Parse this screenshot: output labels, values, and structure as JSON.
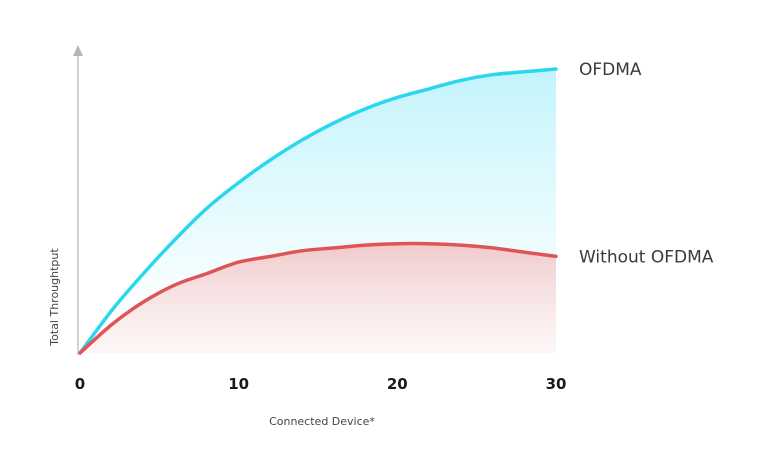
{
  "chart_data": {
    "type": "line",
    "title": "",
    "xlabel": "Connected Device*",
    "ylabel": "Total Throughtput",
    "x_ticks": [
      "0",
      "10",
      "20",
      "30"
    ],
    "xlim": [
      0,
      30
    ],
    "ylim": [
      0,
      100
    ],
    "grid": false,
    "legend": "inline-right",
    "series": [
      {
        "name": "OFDMA",
        "color": "#2ad7ef",
        "x": [
          0,
          2,
          4,
          6,
          8,
          10,
          12,
          14,
          16,
          18,
          20,
          22,
          24,
          26,
          28,
          30
        ],
        "y": [
          0,
          15,
          28,
          40,
          51,
          60,
          68,
          75,
          81,
          86,
          90,
          93,
          96,
          98,
          99,
          100
        ]
      },
      {
        "name": "Without OFDMA",
        "color": "#e05356",
        "x": [
          0,
          2,
          4,
          6,
          8,
          10,
          12,
          14,
          16,
          18,
          20,
          22,
          24,
          26,
          28,
          30
        ],
        "y": [
          0,
          10,
          18,
          24,
          28,
          32,
          34,
          36,
          37,
          38,
          38.5,
          38.5,
          38,
          37,
          35.5,
          34
        ]
      }
    ]
  }
}
